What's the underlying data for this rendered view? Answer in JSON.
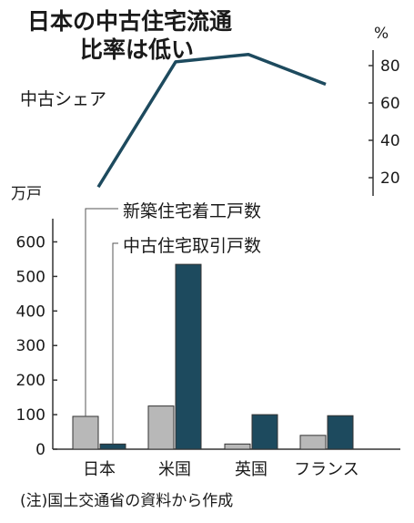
{
  "chart_data": {
    "title_lines": [
      "日本の中古住宅流通",
      "比率は低い"
    ],
    "note": "(注)国土交通省の資料から作成",
    "categories": [
      "日本",
      "米国",
      "英国",
      "フランス"
    ],
    "bar_chart": {
      "type": "bar",
      "unit_label": "万戸",
      "ylim": [
        0,
        650
      ],
      "yticks": [
        0,
        100,
        200,
        300,
        400,
        500,
        600
      ],
      "series": [
        {
          "name": "新築住宅着工戸数",
          "color": "#b8b8b8",
          "values": [
            95,
            125,
            15,
            40
          ]
        },
        {
          "name": "中古住宅取引戸数",
          "color": "#1d4a5e",
          "values": [
            15,
            535,
            100,
            97
          ]
        }
      ]
    },
    "line_chart": {
      "type": "line",
      "name": "中古シェア",
      "unit_label": "%",
      "color": "#1d4a5e",
      "ylim": [
        10,
        90
      ],
      "yticks": [
        20,
        40,
        60,
        80
      ],
      "values": [
        15,
        82,
        86,
        70
      ]
    }
  }
}
